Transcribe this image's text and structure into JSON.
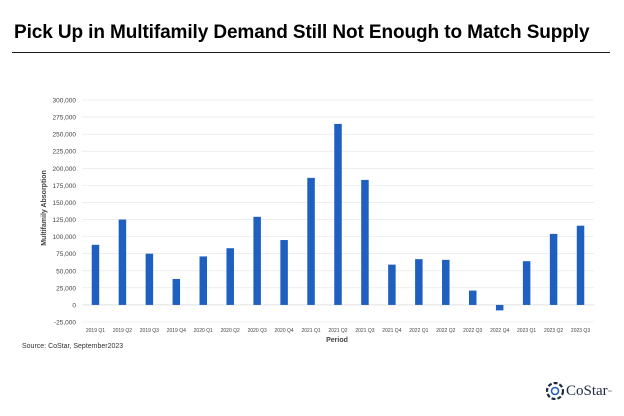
{
  "title": "Pick Up in Multifamily Demand Still Not Enough to Match Supply",
  "source": "Source: CoStar, September2023",
  "logo_text": "CoStar",
  "logo_tm": "™",
  "colors": {
    "bar": "#1f5fbf",
    "grid": "#e3e3e3",
    "axis_text": "#444444"
  },
  "chart_data": {
    "type": "bar",
    "title": "",
    "xlabel": "Period",
    "ylabel": "Multifamily Absorption",
    "ylim": [
      -25000,
      300000
    ],
    "yticks": [
      -25000,
      0,
      25000,
      50000,
      75000,
      100000,
      125000,
      150000,
      175000,
      200000,
      225000,
      250000,
      275000,
      300000
    ],
    "ytick_labels": [
      "-25,000",
      "0",
      "25,000",
      "50,000",
      "75,000",
      "100,000",
      "125,000",
      "150,000",
      "175,000",
      "200,000",
      "225,000",
      "250,000",
      "275,000",
      "300,000"
    ],
    "grid": true,
    "categories": [
      "2019 Q1",
      "2019 Q2",
      "2019 Q3",
      "2019 Q4",
      "2020 Q1",
      "2020 Q2",
      "2020 Q3",
      "2020 Q4",
      "2021 Q1",
      "2021 Q2",
      "2021 Q3",
      "2021 Q4",
      "2022 Q1",
      "2022 Q2",
      "2022 Q3",
      "2022 Q4",
      "2023 Q1",
      "2023 Q2",
      "2023 Q3"
    ],
    "values": [
      88000,
      125000,
      75000,
      38000,
      71000,
      83000,
      129000,
      95000,
      186000,
      265000,
      183000,
      59000,
      67000,
      66000,
      21000,
      -8000,
      64000,
      104000,
      116000
    ]
  }
}
